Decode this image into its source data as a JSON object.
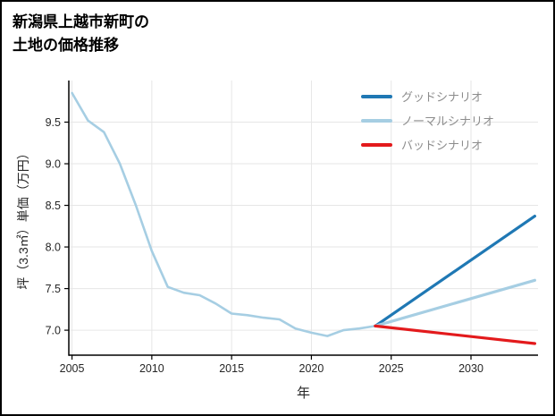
{
  "title": {
    "line1": "新潟県上越市新町の",
    "line2": "土地の価格推移"
  },
  "chart_data": {
    "type": "line",
    "title": "新潟県上越市新町の土地の価格推移",
    "xlabel": "年",
    "ylabel": "坪（3.3㎡）単価（万円）",
    "xlim": [
      2004.8,
      2034.2
    ],
    "ylim": [
      6.7,
      10.0
    ],
    "xticks": [
      2005,
      2010,
      2015,
      2020,
      2025,
      2030
    ],
    "yticks": [
      7.0,
      7.5,
      8.0,
      8.5,
      9.0,
      9.5
    ],
    "grid": true,
    "legend_position": "top-right",
    "colors": {
      "grid": "#e6e6e6",
      "axis": "#000000",
      "tick_text": "#262626",
      "legend_text": "#8c8c8c",
      "good": "#1f78b4",
      "normal": "#a6cee3",
      "bad": "#e31a1c"
    },
    "series": [
      {
        "id": "historical",
        "label": null,
        "color": "#a6cee3",
        "width": 2.6,
        "x": [
          2005,
          2006,
          2007,
          2008,
          2009,
          2010,
          2011,
          2012,
          2013,
          2014,
          2015,
          2016,
          2017,
          2018,
          2019,
          2020,
          2021,
          2022,
          2023,
          2024
        ],
        "y": [
          9.85,
          9.52,
          9.38,
          9.0,
          8.5,
          7.95,
          7.52,
          7.45,
          7.42,
          7.32,
          7.2,
          7.18,
          7.15,
          7.13,
          7.02,
          6.97,
          6.93,
          7.0,
          7.02,
          7.05
        ]
      },
      {
        "id": "good",
        "label": "グッドシナリオ",
        "color": "#1f78b4",
        "width": 3.2,
        "x": [
          2024,
          2034
        ],
        "y": [
          7.05,
          8.37
        ]
      },
      {
        "id": "normal",
        "label": "ノーマルシナリオ",
        "color": "#a6cee3",
        "width": 3.2,
        "x": [
          2024,
          2034
        ],
        "y": [
          7.05,
          7.6
        ]
      },
      {
        "id": "bad",
        "label": "バッドシナリオ",
        "color": "#e31a1c",
        "width": 3.2,
        "x": [
          2024,
          2034
        ],
        "y": [
          7.05,
          6.84
        ]
      }
    ]
  }
}
